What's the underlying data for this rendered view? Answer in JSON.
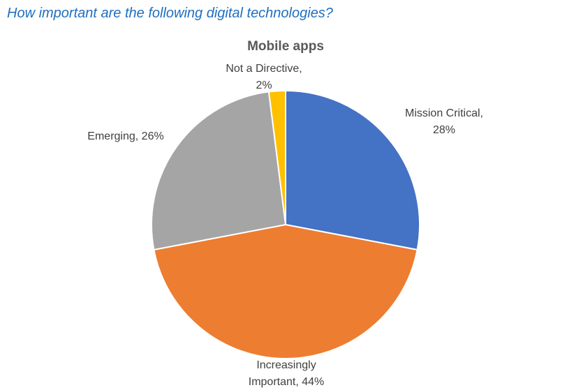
{
  "question": "How important are the following digital technologies?",
  "chart_data": {
    "type": "pie",
    "title": "Mobile apps",
    "slices": [
      {
        "name": "Mission Critical",
        "value": 28,
        "label_lines": [
          "Mission Critical,",
          "28%"
        ],
        "color": "#4472c4"
      },
      {
        "name": "Increasingly Important",
        "value": 44,
        "label_lines": [
          "Increasingly",
          "Important, 44%"
        ],
        "color": "#ed7d31"
      },
      {
        "name": "Emerging",
        "value": 26,
        "label_lines": [
          "Emerging, 26%"
        ],
        "color": "#a5a5a5"
      },
      {
        "name": "Not a Directive",
        "value": 2,
        "label_lines": [
          "Not a Directive,",
          "2%"
        ],
        "color": "#ffc000"
      }
    ]
  }
}
